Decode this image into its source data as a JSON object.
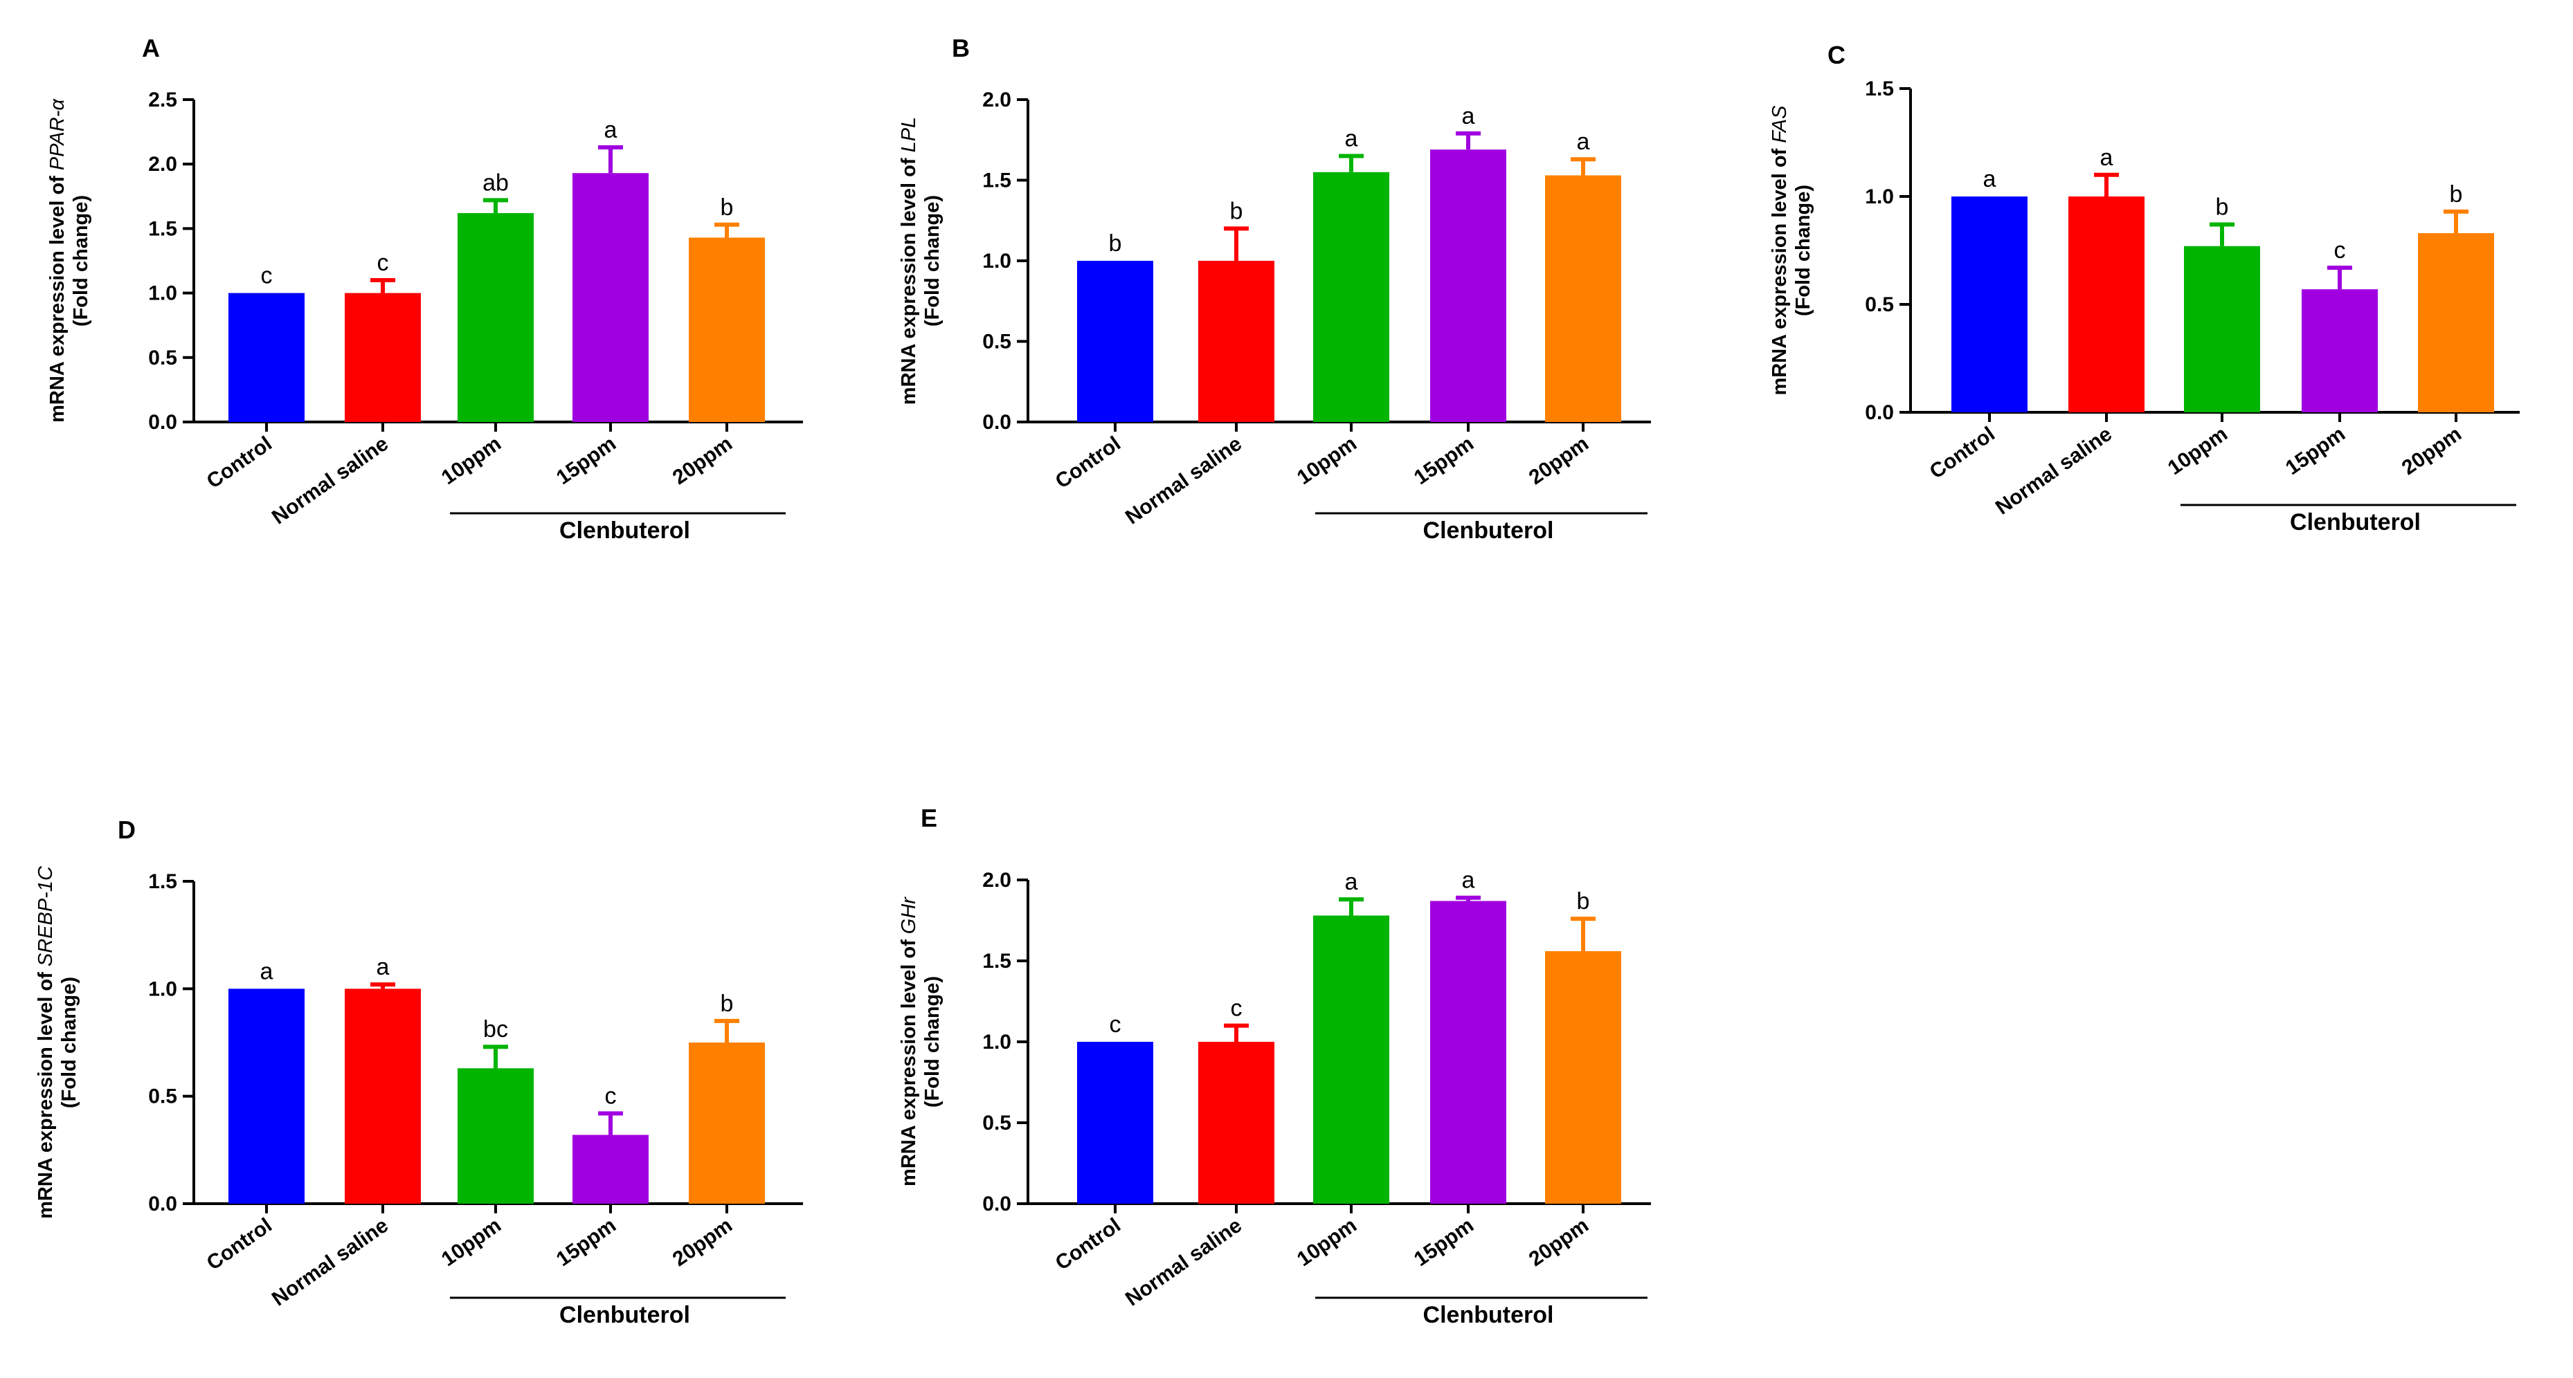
{
  "figure": {
    "ylabel_prefix": "mRNA expression level of",
    "ylabel_suffix": "(Fold change)",
    "colors": {
      "Control": "#0000FF",
      "Normal saline": "#FF0000",
      "10ppm": "#00B400",
      "15ppm": "#A000E0",
      "20ppm": "#FF8000",
      "axis": "#000000",
      "group_line": "#000000"
    }
  },
  "chart_data": [
    {
      "panel": "A",
      "type": "bar",
      "gene": "PPAR-α",
      "categories": [
        "Control",
        "Normal saline",
        "10ppm",
        "15ppm",
        "20ppm"
      ],
      "group_label": "Clenbuterol",
      "values": [
        1.0,
        1.0,
        1.62,
        1.93,
        1.43
      ],
      "errors": [
        0.0,
        0.1,
        0.1,
        0.2,
        0.1
      ],
      "significance": [
        "c",
        "c",
        "ab",
        "a",
        "b"
      ],
      "ylim": [
        0,
        2.5
      ],
      "yticks": [
        "0.0",
        "0.5",
        "1.0",
        "1.5",
        "2.0",
        "2.5"
      ]
    },
    {
      "panel": "B",
      "type": "bar",
      "gene": "LPL",
      "categories": [
        "Control",
        "Normal saline",
        "10ppm",
        "15ppm",
        "20ppm"
      ],
      "group_label": "Clenbuterol",
      "values": [
        1.0,
        1.0,
        1.55,
        1.69,
        1.53
      ],
      "errors": [
        0.0,
        0.2,
        0.1,
        0.1,
        0.1
      ],
      "significance": [
        "b",
        "b",
        "a",
        "a",
        "a"
      ],
      "ylim": [
        0,
        2.0
      ],
      "yticks": [
        "0.0",
        "0.5",
        "1.0",
        "1.5",
        "2.0"
      ]
    },
    {
      "panel": "C",
      "type": "bar",
      "gene": "FAS",
      "categories": [
        "Control",
        "Normal saline",
        "10ppm",
        "15ppm",
        "20ppm"
      ],
      "group_label": "Clenbuterol",
      "values": [
        1.0,
        1.0,
        0.77,
        0.57,
        0.83
      ],
      "errors": [
        0.0,
        0.1,
        0.1,
        0.1,
        0.1
      ],
      "significance": [
        "a",
        "a",
        "b",
        "c",
        "b"
      ],
      "ylim": [
        0,
        1.5
      ],
      "yticks": [
        "0.0",
        "0.5",
        "1.0",
        "1.5"
      ]
    },
    {
      "panel": "D",
      "type": "bar",
      "gene": "SREBP-1C",
      "categories": [
        "Control",
        "Normal saline",
        "10ppm",
        "15ppm",
        "20ppm"
      ],
      "group_label": "Clenbuterol",
      "values": [
        1.0,
        1.0,
        0.63,
        0.32,
        0.75
      ],
      "errors": [
        0.0,
        0.02,
        0.1,
        0.1,
        0.1
      ],
      "significance": [
        "a",
        "a",
        "bc",
        "c",
        "b"
      ],
      "ylim": [
        0,
        1.5
      ],
      "yticks": [
        "0.0",
        "0.5",
        "1.0",
        "1.5"
      ]
    },
    {
      "panel": "E",
      "type": "bar",
      "gene": "GHr",
      "categories": [
        "Control",
        "Normal saline",
        "10ppm",
        "15ppm",
        "20ppm"
      ],
      "group_label": "Clenbuterol",
      "values": [
        1.0,
        1.0,
        1.78,
        1.87,
        1.56
      ],
      "errors": [
        0.0,
        0.1,
        0.1,
        0.02,
        0.2
      ],
      "significance": [
        "c",
        "c",
        "a",
        "a",
        "b"
      ],
      "ylim": [
        0,
        2.0
      ],
      "yticks": [
        "0.0",
        "0.5",
        "1.0",
        "1.5",
        "2.0"
      ]
    }
  ]
}
